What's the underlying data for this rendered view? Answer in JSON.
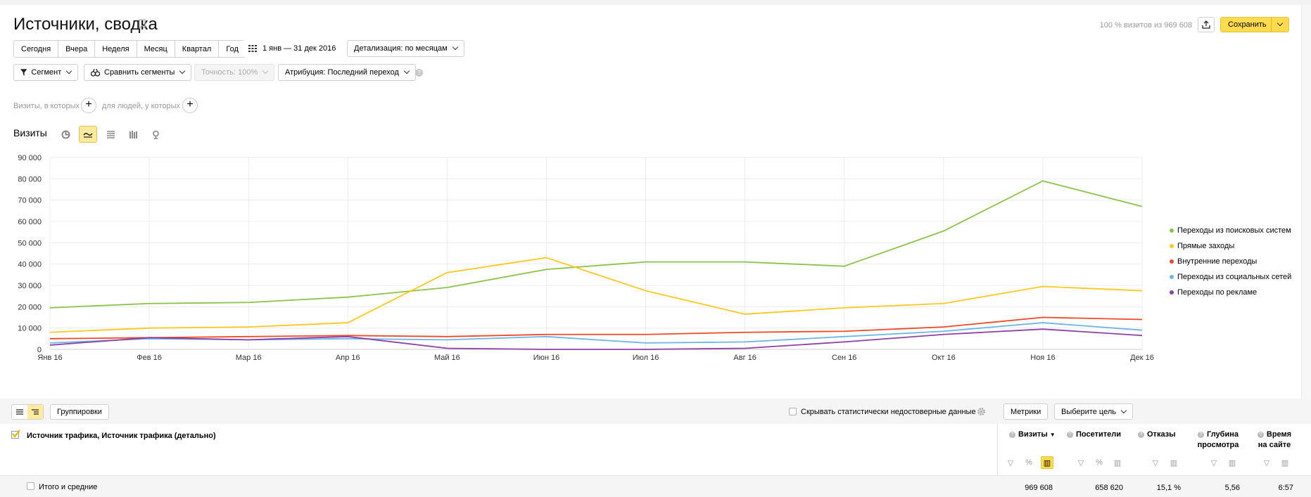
{
  "header": {
    "title": "Источники, сводка",
    "visits_info": "100 % визитов из 969 608",
    "save_label": "Сохранить"
  },
  "periods": [
    "Сегодня",
    "Вчера",
    "Неделя",
    "Месяц",
    "Квартал",
    "Год"
  ],
  "date_range": "1 янв — 31 дек 2016",
  "detail": "Детализация: по месяцам",
  "segment_label": "Сегмент",
  "compare_label": "Сравнить сегменты",
  "accuracy_label": "Точность: 100%",
  "attribution_label": "Атрибуция: Последний переход",
  "conditions": {
    "visits_text": "Визиты, в которых",
    "people_text": "для людей, у которых"
  },
  "chart_title": "Визиты",
  "chart_data": {
    "type": "line",
    "categories": [
      "Янв 16",
      "Фев 16",
      "Мар 16",
      "Апр 16",
      "Май 16",
      "Июн 16",
      "Июл 16",
      "Авг 16",
      "Сен 16",
      "Окт 16",
      "Ноя 16",
      "Дек 16"
    ],
    "y_ticks": [
      "0",
      "10 000",
      "20 000",
      "30 000",
      "40 000",
      "50 000",
      "60 000",
      "70 000",
      "80 000",
      "90 000"
    ],
    "ylim": [
      0,
      90000
    ],
    "grid": true,
    "legend_position": "right",
    "series": [
      {
        "name": "Переходы из поисковых систем",
        "color": "#8bc34a",
        "values": [
          19500,
          21500,
          22000,
          24500,
          29000,
          37500,
          41000,
          41000,
          39000,
          55500,
          79000,
          67000
        ]
      },
      {
        "name": "Прямые заходы",
        "color": "#ffc81f",
        "values": [
          8000,
          10000,
          10500,
          12500,
          36000,
          43000,
          27500,
          16500,
          19500,
          21500,
          29500,
          27500
        ]
      },
      {
        "name": "Внутренние переходы",
        "color": "#ef4a25",
        "values": [
          5000,
          5500,
          6000,
          6500,
          6000,
          7000,
          7000,
          8000,
          8500,
          10500,
          15000,
          14000
        ]
      },
      {
        "name": "Переходы из социальных сетей",
        "color": "#6db5e8",
        "values": [
          3000,
          5000,
          4500,
          5000,
          4500,
          6000,
          3000,
          3500,
          6000,
          8500,
          12500,
          9000
        ]
      },
      {
        "name": "Переходы по рекламе",
        "color": "#8e3fa6",
        "values": [
          2000,
          5500,
          4500,
          6000,
          500,
          0,
          0,
          500,
          3500,
          7000,
          9500,
          6500
        ]
      }
    ]
  },
  "table": {
    "groupings_label": "Группировки",
    "hide_unreliable_label": "Скрывать статистически недостоверные данные",
    "metrics_label": "Метрики",
    "goal_label": "Выберите цель",
    "dimension_header": "Источник трафика, Источник трафика (детально)",
    "columns": [
      {
        "label": "Визиты",
        "sort": "▼",
        "total": "969 608"
      },
      {
        "label": "Посетители",
        "total": "658 620"
      },
      {
        "label": "Отказы",
        "total": "15,1 %"
      },
      {
        "label": "Глубина просмотра",
        "line1": "Глубина",
        "line2": "просмотра",
        "total": "5,56"
      },
      {
        "label": "Время на сайте",
        "line1": "Время",
        "line2": "на сайте",
        "total": "6:57"
      }
    ],
    "total_label": "Итого и средние"
  }
}
